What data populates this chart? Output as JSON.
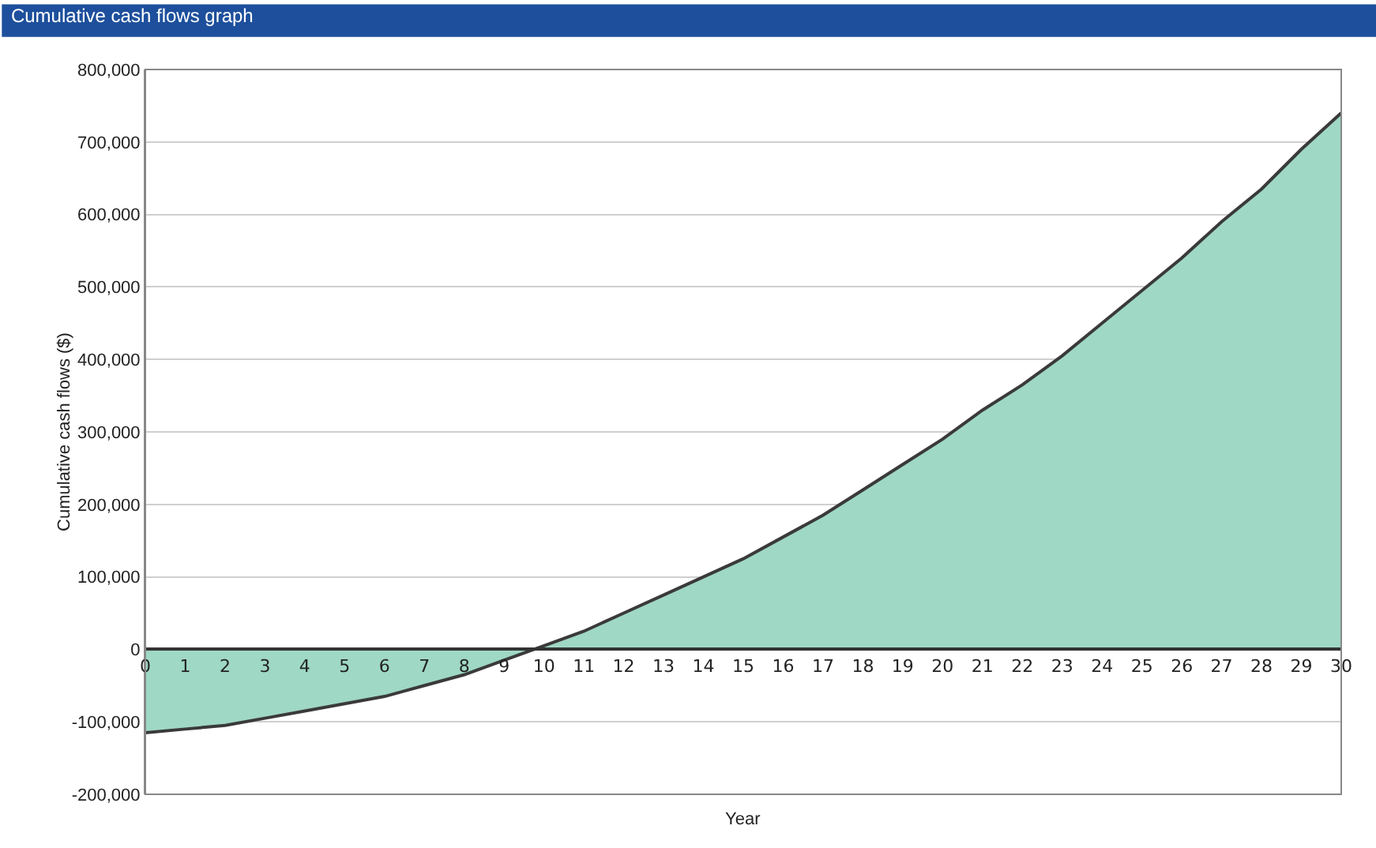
{
  "chart_data": {
    "type": "area",
    "title": "Cumulative cash flows graph",
    "xlabel": "Year",
    "ylabel": "Cumulative cash flows ($)",
    "x": [
      0,
      1,
      2,
      3,
      4,
      5,
      6,
      7,
      8,
      9,
      10,
      11,
      12,
      13,
      14,
      15,
      16,
      17,
      18,
      19,
      20,
      21,
      22,
      23,
      24,
      25,
      26,
      27,
      28,
      29,
      30
    ],
    "series": [
      {
        "color": "#9fd8c4",
        "values": [
          -115000,
          -110000,
          -105000,
          -95000,
          -85000,
          -75000,
          -65000,
          -50000,
          -35000,
          -15000,
          5000,
          25000,
          50000,
          75000,
          100000,
          125000,
          155000,
          185000,
          220000,
          255000,
          290000,
          330000,
          365000,
          405000,
          450000,
          495000,
          540000,
          590000,
          635000,
          690000,
          740000
        ]
      }
    ],
    "xlim": [
      0,
      30
    ],
    "xticks": [
      0,
      1,
      2,
      3,
      4,
      5,
      6,
      7,
      8,
      9,
      10,
      11,
      12,
      13,
      14,
      15,
      16,
      17,
      18,
      19,
      20,
      21,
      22,
      23,
      24,
      25,
      26,
      27,
      28,
      29,
      30
    ],
    "ylim": [
      -200000,
      800000
    ],
    "yticks": [
      {
        "value": -200000,
        "label": "-200,000"
      },
      {
        "value": -100000,
        "label": "-100,000"
      },
      {
        "value": 0,
        "label": "0"
      },
      {
        "value": 100000,
        "label": "100,000"
      },
      {
        "value": 200000,
        "label": "200,000"
      },
      {
        "value": 300000,
        "label": "300,000"
      },
      {
        "value": 400000,
        "label": "400,000"
      },
      {
        "value": 500000,
        "label": "500,000"
      },
      {
        "value": 600000,
        "label": "600,000"
      },
      {
        "value": 700000,
        "label": "700,000"
      },
      {
        "value": 800000,
        "label": "800,000"
      }
    ],
    "grid": "y",
    "marker": "none",
    "line_style": "solid"
  }
}
